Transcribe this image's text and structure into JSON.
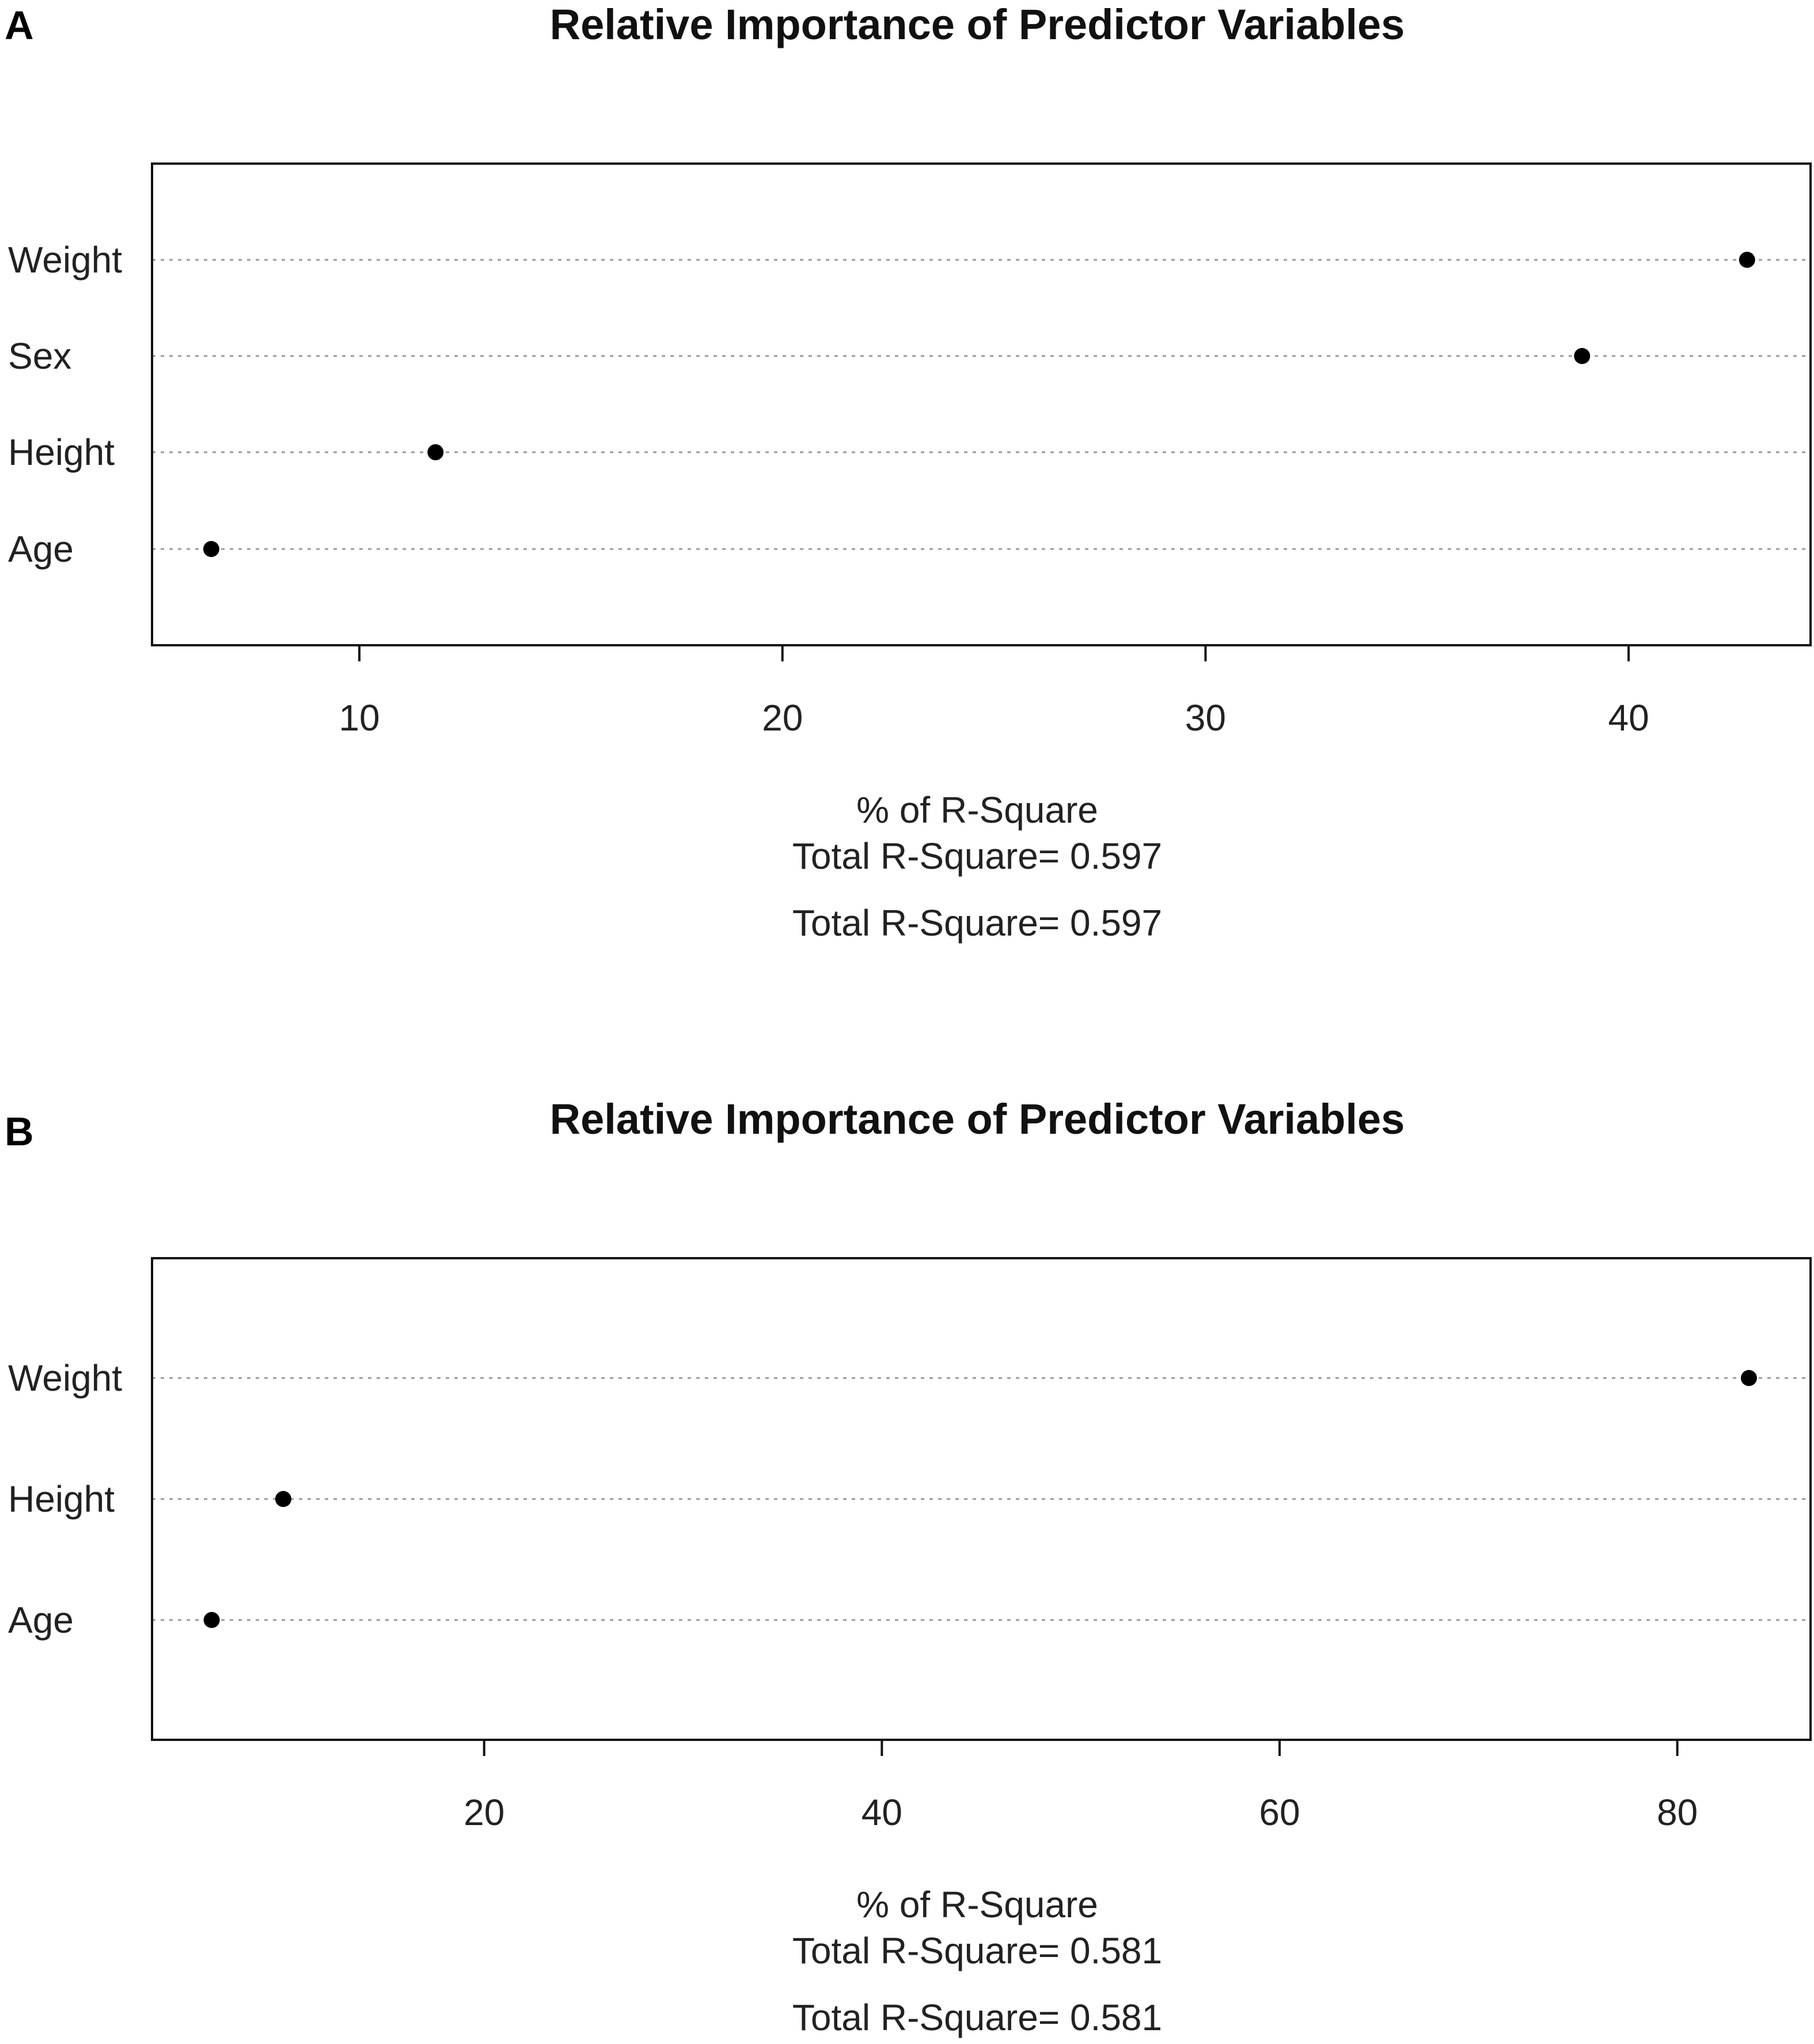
{
  "chart_data": [
    {
      "panel": "A",
      "type": "scatter",
      "title": "Relative Importance of Predictor Variables",
      "xlabel": "% of R-Square",
      "subtitle": "Total R-Square= 0.597",
      "note": "Total R-Square= 0.597",
      "categories": [
        "Weight",
        "Sex",
        "Height",
        "Age"
      ],
      "values": [
        42.8,
        38.9,
        11.8,
        6.5
      ],
      "xlim": [
        5.1,
        44.3
      ],
      "xticks": [
        10,
        20,
        30,
        40
      ],
      "grid": "dotted horizontal lines per category"
    },
    {
      "panel": "B",
      "type": "scatter",
      "title": "Relative Importance of Predictor Variables",
      "xlabel": "% of R-Square",
      "subtitle": "Total R-Square= 0.581",
      "note": "Total R-Square= 0.581",
      "categories": [
        "Weight",
        "Height",
        "Age"
      ],
      "values": [
        83.6,
        9.9,
        6.3
      ],
      "xlim": [
        3.3,
        86.7
      ],
      "xticks": [
        20,
        40,
        60,
        80
      ],
      "grid": "dotted horizontal lines per category"
    }
  ]
}
